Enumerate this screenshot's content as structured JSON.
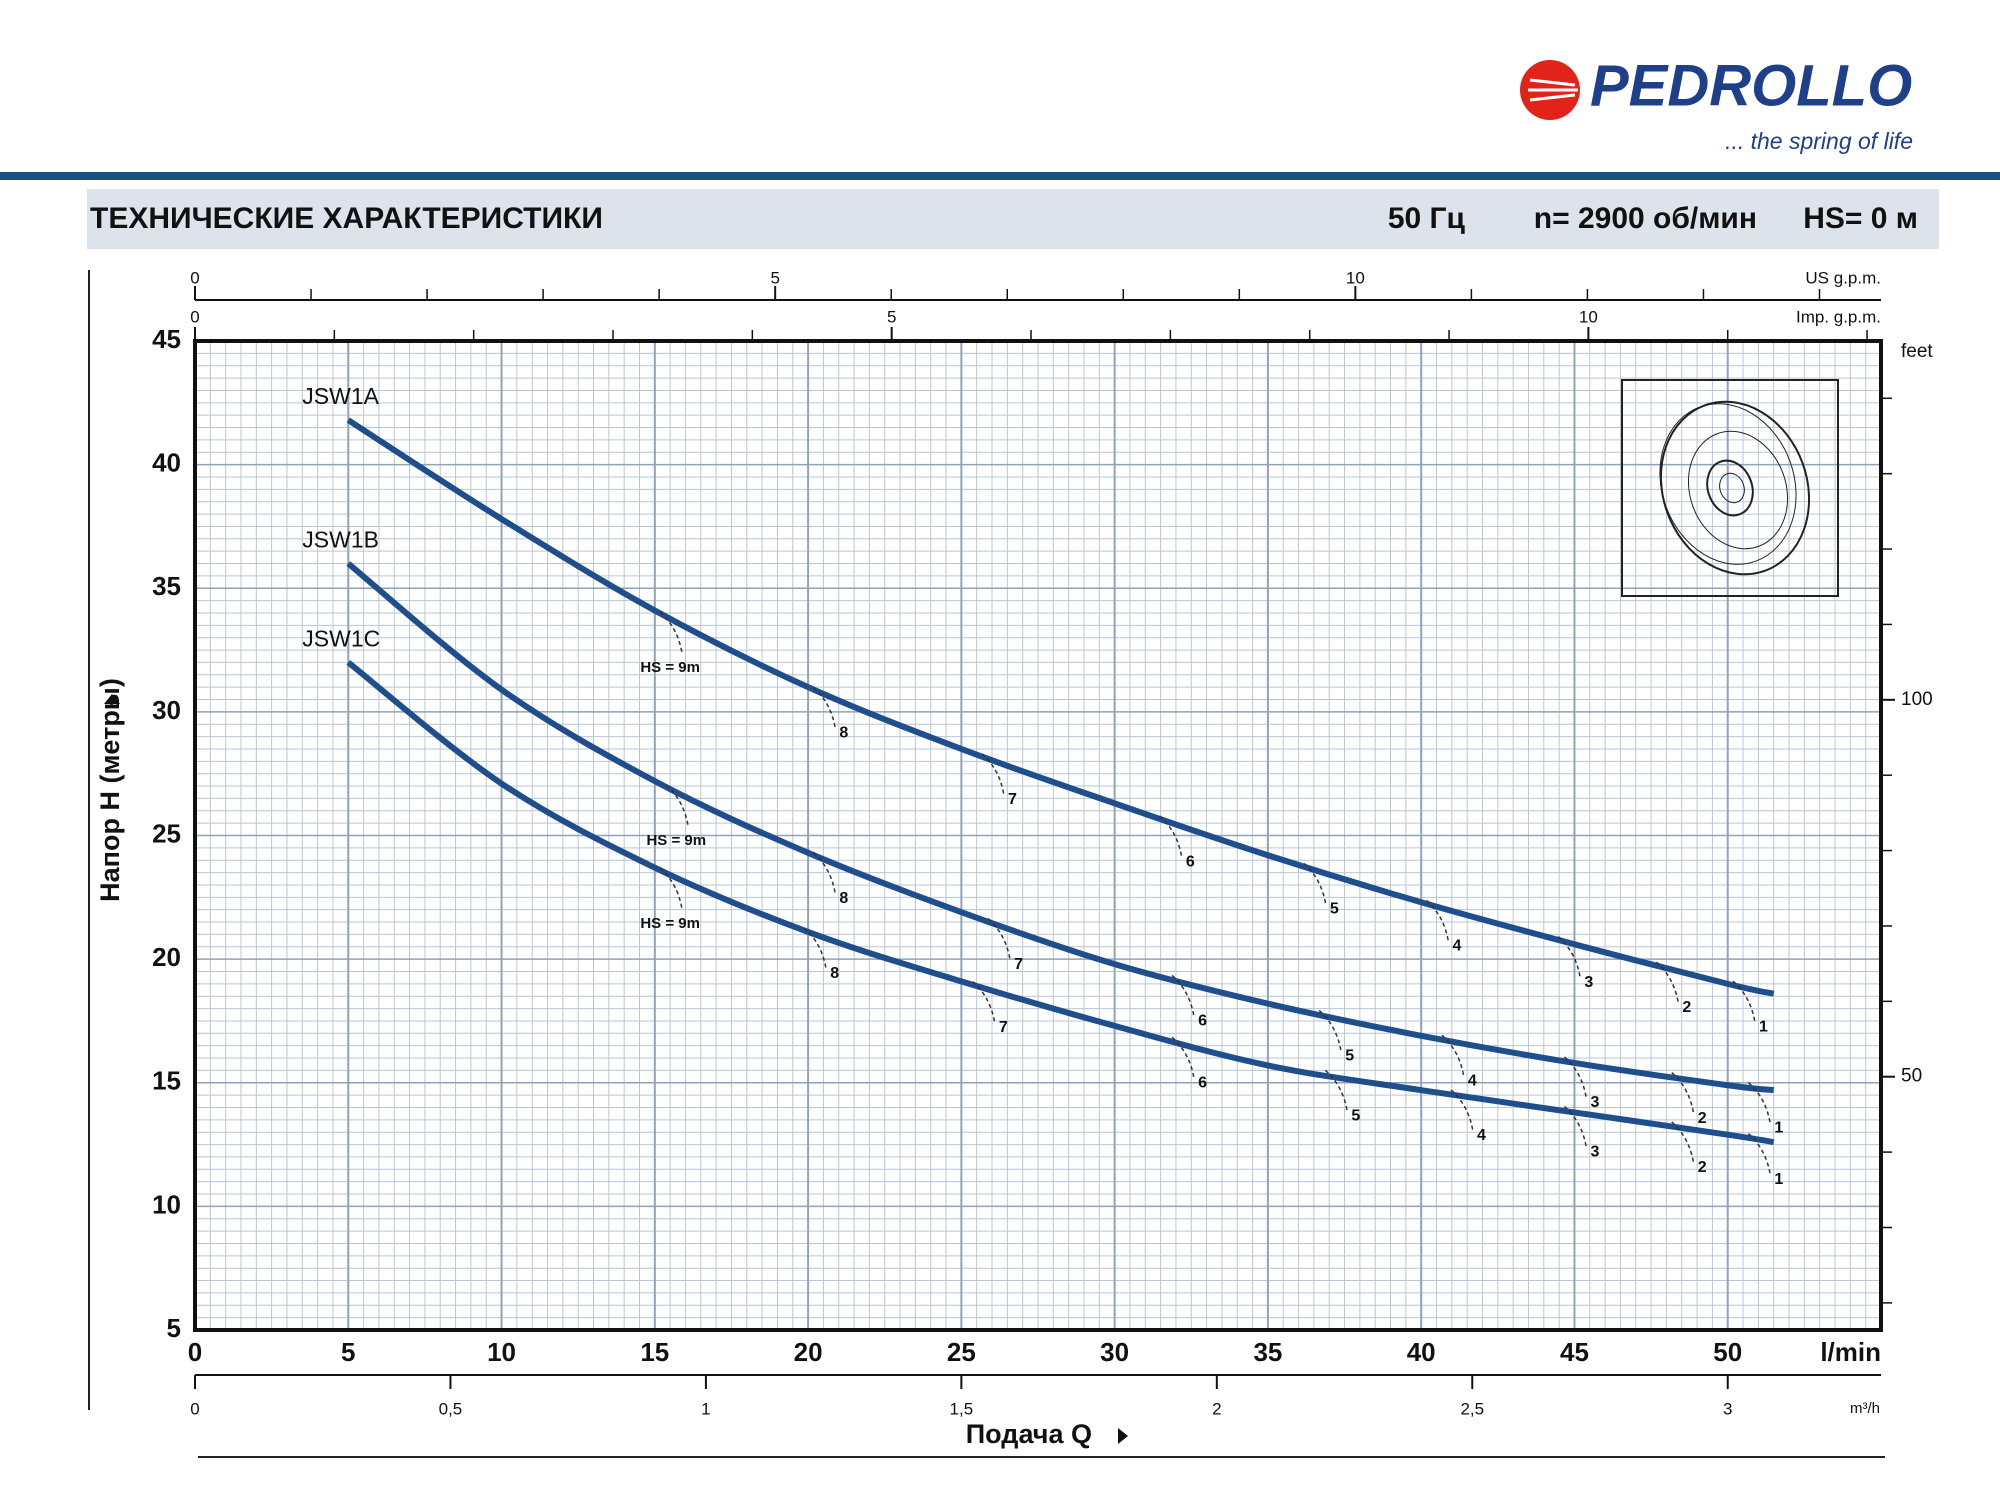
{
  "header": {
    "brand": "PEDROLLO",
    "tagline": "... the spring of life",
    "title": "ТЕХНИЧЕСКИЕ ХАРАКТЕРИСТИКИ",
    "specs": [
      "50 Гц",
      "n= 2900 об/мин",
      "HS= 0 м"
    ]
  },
  "chart_data": {
    "type": "line",
    "xlabel": "l/min",
    "ylabel": "Напор H (метры)",
    "xlabel2": "Подача Q",
    "x": [
      5,
      10,
      15,
      20,
      25,
      30,
      35,
      40,
      45,
      50,
      51.5
    ],
    "xlim": [
      0,
      55
    ],
    "xticks": [
      0,
      5,
      10,
      15,
      20,
      25,
      30,
      35,
      40,
      45,
      50
    ],
    "ylim": [
      5,
      45
    ],
    "yticks": [
      5,
      10,
      15,
      20,
      25,
      30,
      35,
      40,
      45
    ],
    "grid": true,
    "series": [
      {
        "name": "JSW1A",
        "color": "#1f4e8c",
        "values": [
          41.8,
          37.8,
          34.1,
          31.0,
          28.5,
          26.3,
          24.2,
          22.3,
          20.6,
          19.0,
          18.6
        ],
        "hs_marks": [
          {
            "label": "HS = 9m",
            "x": 15.5
          },
          {
            "label": "8",
            "x": 20.5
          },
          {
            "label": "7",
            "x": 26
          },
          {
            "label": "6",
            "x": 31.8
          },
          {
            "label": "5",
            "x": 36.5
          },
          {
            "label": "4",
            "x": 40.5
          },
          {
            "label": "3",
            "x": 44.8
          },
          {
            "label": "2",
            "x": 48
          },
          {
            "label": "1",
            "x": 50.5
          }
        ]
      },
      {
        "name": "JSW1B",
        "color": "#1f4e8c",
        "values": [
          36.0,
          30.9,
          27.2,
          24.3,
          21.9,
          19.8,
          18.2,
          16.9,
          15.8,
          14.9,
          14.7
        ],
        "hs_marks": [
          {
            "label": "HS = 9m",
            "x": 15.7
          },
          {
            "label": "8",
            "x": 20.5
          },
          {
            "label": "7",
            "x": 26.2
          },
          {
            "label": "6",
            "x": 32.2
          },
          {
            "label": "5",
            "x": 37
          },
          {
            "label": "4",
            "x": 41
          },
          {
            "label": "3",
            "x": 45
          },
          {
            "label": "2",
            "x": 48.5
          },
          {
            "label": "1",
            "x": 51
          }
        ]
      },
      {
        "name": "JSW1C",
        "color": "#1f4e8c",
        "values": [
          32.0,
          27.1,
          23.7,
          21.1,
          19.1,
          17.3,
          15.7,
          14.7,
          13.8,
          12.9,
          12.6
        ],
        "hs_marks": [
          {
            "label": "HS = 9m",
            "x": 15.5
          },
          {
            "label": "8",
            "x": 20.2
          },
          {
            "label": "7",
            "x": 25.7
          },
          {
            "label": "6",
            "x": 32.2
          },
          {
            "label": "5",
            "x": 37.2
          },
          {
            "label": "4",
            "x": 41.3
          },
          {
            "label": "3",
            "x": 45
          },
          {
            "label": "2",
            "x": 48.5
          },
          {
            "label": "1",
            "x": 51
          }
        ]
      }
    ],
    "us_gpm_axis": {
      "label": "US g.p.m.",
      "lim": [
        0,
        14.53
      ],
      "ticks": [
        0,
        5,
        10
      ],
      "minor_ticks": [
        1,
        2,
        3,
        4,
        6,
        7,
        8,
        9,
        11,
        12,
        13,
        14
      ]
    },
    "imp_gpm_axis": {
      "label": "Imp. g.p.m.",
      "lim": [
        0,
        12.1
      ],
      "ticks": [
        0,
        5,
        10
      ],
      "minor_ticks": [
        1,
        2,
        3,
        4,
        6,
        7,
        8,
        9,
        11,
        12
      ]
    },
    "feet_axis": {
      "label": "feet",
      "lim": [
        16.4,
        147.6
      ],
      "ticks": [
        50,
        100
      ],
      "minor_ticks": [
        20,
        30,
        40,
        60,
        70,
        80,
        90,
        110,
        120,
        130,
        140
      ]
    },
    "m3h_axis": {
      "label": "m³/h",
      "lim": [
        0,
        3.3
      ],
      "ticks": [
        0,
        {
          "value": 0.5,
          "label": "0,5"
        },
        1,
        {
          "value": 1.5,
          "label": "1,5"
        },
        2,
        {
          "value": 2.5,
          "label": "2,5"
        },
        3
      ]
    }
  }
}
